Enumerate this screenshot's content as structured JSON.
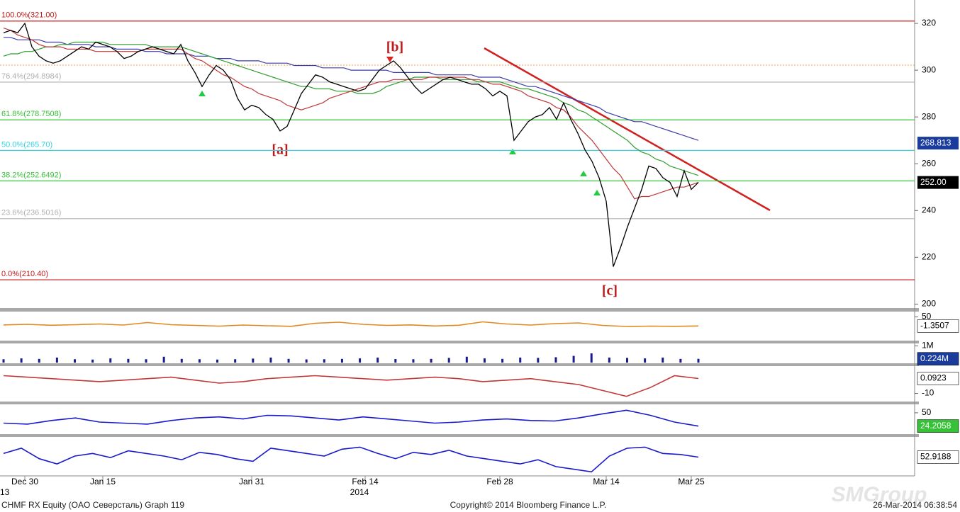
{
  "chart_data": [
    {
      "type": "line",
      "categories": [
        null,
        null,
        null,
        "Dec 30",
        null,
        null,
        null,
        null,
        null,
        null,
        null,
        null,
        null,
        null,
        "Jan 15",
        null,
        null,
        null,
        null,
        null,
        null,
        null,
        null,
        null,
        null,
        null,
        null,
        null,
        null,
        null,
        null,
        null,
        null,
        null,
        null,
        "Jan 31",
        null,
        null,
        null,
        null,
        null,
        null,
        null,
        null,
        null,
        null,
        null,
        null,
        null,
        null,
        null,
        "Feb 14",
        null,
        null,
        null,
        null,
        null,
        null,
        null,
        null,
        null,
        null,
        null,
        null,
        null,
        null,
        null,
        null,
        null,
        null,
        "Feb 28",
        null,
        null,
        null,
        null,
        null,
        null,
        null,
        null,
        null,
        null,
        null,
        null,
        null,
        null,
        "Mar 14",
        null,
        null,
        null,
        null,
        null,
        null,
        null,
        null,
        null,
        null,
        null,
        "Mar 25",
        null
      ],
      "series": [
        {
          "color": "#000000",
          "values": [
            316,
            317,
            316,
            320,
            310,
            306,
            304,
            303,
            304,
            306,
            308,
            310,
            309,
            312,
            311,
            310,
            308,
            305,
            306,
            308,
            309,
            310,
            309,
            308,
            307,
            311,
            304,
            299,
            293,
            298,
            302,
            300,
            296,
            288,
            283,
            285,
            284,
            281,
            279,
            274,
            276,
            283,
            290,
            294,
            298,
            297,
            295,
            294,
            293,
            292,
            291,
            292,
            296,
            300,
            302,
            304,
            301,
            297,
            293,
            290,
            292,
            294,
            296,
            297,
            296,
            295,
            294,
            294,
            292,
            289,
            291,
            289,
            270,
            274,
            278,
            280,
            281,
            284,
            279,
            286,
            279,
            273,
            266,
            261,
            254,
            244,
            216,
            224,
            233,
            241,
            249,
            259,
            258,
            254,
            252,
            246,
            257,
            249,
            252
          ]
        },
        {
          "color": "#c03838",
          "values": [
            318,
            317,
            315,
            314,
            313,
            311,
            310,
            310,
            310,
            309,
            309,
            309,
            309,
            308,
            308,
            308,
            308,
            308,
            308,
            308,
            309,
            309,
            309,
            309,
            309,
            309,
            307,
            305,
            304,
            302,
            300,
            298,
            297,
            295,
            293,
            292,
            290,
            289,
            288,
            287,
            285,
            284,
            283,
            284,
            285,
            286,
            288,
            289,
            290,
            291,
            292,
            293,
            294,
            295,
            295,
            296,
            296,
            296,
            296,
            296,
            297,
            297,
            297,
            297,
            297,
            297,
            296,
            296,
            295,
            294,
            294,
            293,
            292,
            291,
            289,
            288,
            287,
            286,
            284,
            283,
            280,
            276,
            273,
            270,
            266,
            262,
            258,
            255,
            250,
            245,
            246,
            246,
            247,
            248,
            249,
            250,
            250,
            251,
            252
          ]
        },
        {
          "color": "#2e9e2e",
          "values": [
            306,
            307,
            307,
            308,
            308,
            309,
            310,
            310,
            311,
            311,
            312,
            312,
            312,
            312,
            312,
            311,
            311,
            311,
            311,
            311,
            311,
            310,
            310,
            310,
            310,
            310,
            309,
            308,
            307,
            306,
            305,
            304,
            303,
            302,
            301,
            300,
            299,
            298,
            297,
            296,
            295,
            294,
            293,
            293,
            292,
            292,
            292,
            291,
            291,
            291,
            290,
            290,
            290,
            291,
            293,
            294,
            295,
            296,
            297,
            297,
            297,
            297,
            296,
            296,
            296,
            296,
            296,
            295,
            295,
            295,
            295,
            294,
            293,
            292,
            292,
            291,
            290,
            289,
            288,
            286,
            285,
            283,
            282,
            280,
            278,
            276,
            274,
            272,
            270,
            267,
            265,
            264,
            262,
            261,
            259,
            258,
            257,
            256,
            255
          ]
        },
        {
          "color": "#3c3cac",
          "values": [
            314,
            314,
            313,
            313,
            313,
            313,
            312,
            312,
            312,
            311,
            311,
            311,
            311,
            310,
            310,
            310,
            309,
            309,
            309,
            309,
            308,
            308,
            308,
            307,
            307,
            307,
            307,
            306,
            306,
            306,
            305,
            305,
            305,
            304,
            304,
            304,
            304,
            303,
            303,
            303,
            303,
            302,
            302,
            302,
            302,
            301,
            301,
            301,
            301,
            300,
            300,
            300,
            300,
            300,
            300,
            299,
            299,
            299,
            299,
            299,
            299,
            298,
            298,
            298,
            298,
            298,
            298,
            297,
            297,
            297,
            297,
            296,
            295,
            294,
            293,
            293,
            292,
            291,
            290,
            289,
            288,
            287,
            286,
            285,
            284,
            282,
            281,
            280,
            279,
            278,
            278,
            277,
            276,
            275,
            274,
            273,
            272,
            271,
            270
          ]
        }
      ],
      "ylim": [
        198,
        330
      ],
      "yticks": [
        200,
        220,
        240,
        260,
        280,
        300,
        320
      ],
      "levels": [
        {
          "value": 321.0,
          "label": "100.0%(321.00)"
        },
        {
          "value": 294.8984,
          "label": "76.4%(294.8984)"
        },
        {
          "value": 278.7508,
          "label": "61.8%(278.7508)"
        },
        {
          "value": 265.7,
          "label": "50.0%(265.70)"
        },
        {
          "value": 252.6492,
          "label": "38.2%(252.6492)"
        },
        {
          "value": 236.5016,
          "label": "23.6%(236.5016)"
        },
        {
          "value": 210.4,
          "label": "0.0%(210.40)"
        }
      ],
      "level_colors": [
        "#c41a1a",
        "#b0b0b0",
        "#36c236",
        "#36d0e0",
        "#36c236",
        "#b0b0b0",
        "#c41a1a"
      ],
      "annotations": [
        "[a]",
        "[b]",
        "[c]"
      ],
      "price_tags": {
        "values": [
          268.813,
          252.0
        ],
        "value_labels": [
          "268.813",
          "252.00"
        ],
        "colors": [
          "#1a3c9c",
          "#000000"
        ]
      },
      "x_sublabels": [
        "13",
        "2014"
      ]
    },
    {
      "type": "line",
      "color": "#e08a1e",
      "ylim": [
        -80,
        80
      ],
      "yticks": [
        50
      ],
      "values": [
        5,
        8,
        3,
        6,
        10,
        4,
        18,
        6,
        2,
        -2,
        4,
        0,
        -3,
        14,
        20,
        8,
        2,
        5,
        -1,
        3,
        22,
        10,
        4,
        12,
        16,
        2,
        -4,
        -2,
        -3,
        -1
      ],
      "tag": {
        "value": -1.3507,
        "label": "-1.3507"
      },
      "tag_color": "#ffffff"
    },
    {
      "type": "bar",
      "color": "#1a1a8c",
      "ylim": [
        0,
        1.1
      ],
      "yticks": [
        {
          "value": 1,
          "label": "1M"
        }
      ],
      "values": [
        0.2,
        0.25,
        0.22,
        0.3,
        0.2,
        0.18,
        0.25,
        0.22,
        0.2,
        0.35,
        0.22,
        0.2,
        0.18,
        0.2,
        0.24,
        0.3,
        0.22,
        0.19,
        0.2,
        0.22,
        0.25,
        0.3,
        0.21,
        0.2,
        0.22,
        0.28,
        0.35,
        0.25,
        0.22,
        0.3,
        0.28,
        0.32,
        0.4,
        0.55,
        0.3,
        0.28,
        0.25,
        0.3,
        0.22,
        0.224
      ],
      "tag": {
        "value": 0.224,
        "label": "0.224M"
      },
      "tag_color": "#1a3c9c"
    },
    {
      "type": "line",
      "color": "#c03838",
      "ylim": [
        -15,
        8
      ],
      "yticks": [
        -10
      ],
      "values": [
        2,
        1,
        0,
        -1,
        -2,
        -1,
        0,
        1,
        -1,
        -3,
        -2,
        0,
        1,
        2,
        1,
        0,
        -1,
        0,
        1,
        0,
        -2,
        -1,
        0,
        -2,
        -4,
        -8,
        -12,
        -6,
        2,
        0.0923
      ],
      "tag": {
        "value": 0.0923,
        "label": "0.0923"
      },
      "tag_color": "#ffffff"
    },
    {
      "type": "line",
      "color": "#1a1acc",
      "ylim": [
        10,
        65
      ],
      "yticks": [
        50
      ],
      "values": [
        30,
        28,
        35,
        40,
        32,
        30,
        28,
        35,
        40,
        42,
        38,
        45,
        44,
        40,
        36,
        42,
        38,
        34,
        30,
        32,
        36,
        38,
        35,
        34,
        40,
        48,
        55,
        45,
        32,
        24.2058
      ],
      "tag": {
        "value": 24.2058,
        "label": "24.2058"
      },
      "tag_color": "#36c236"
    },
    {
      "type": "line",
      "color": "#1a1acc",
      "ylim": [
        20,
        90
      ],
      "values": [
        60,
        70,
        50,
        40,
        55,
        60,
        52,
        65,
        60,
        55,
        48,
        62,
        58,
        50,
        45,
        70,
        65,
        60,
        55,
        68,
        72,
        60,
        50,
        62,
        58,
        66,
        55,
        50,
        45,
        40,
        48,
        35,
        30,
        25,
        55,
        70,
        72,
        60,
        58,
        52.9188
      ],
      "tag": {
        "value": 52.9188,
        "label": "52.9188"
      },
      "tag_color": "#ffffff"
    }
  ],
  "footer": {
    "left": "CHMF RX Equity (OAO Северсталь) Graph 119",
    "center": "Copyright© 2014 Bloomberg Finance L.P.",
    "right": "26-Mar-2014 06:38:54"
  },
  "watermark": "SMGroup"
}
